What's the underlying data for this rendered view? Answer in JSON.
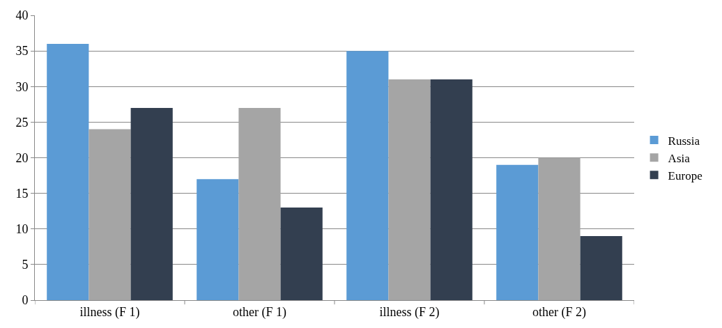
{
  "chart_data": {
    "type": "bar",
    "categories": [
      "illness (F 1)",
      "other (F 1)",
      "illness (F 2)",
      "other (F 2)"
    ],
    "series": [
      {
        "name": "Russia",
        "color": "#5b9bd5",
        "values": [
          36,
          17,
          35,
          19
        ]
      },
      {
        "name": "Asia",
        "color": "#a5a5a5",
        "values": [
          24,
          27,
          31,
          20
        ]
      },
      {
        "name": "Europe",
        "color": "#333f50",
        "values": [
          27,
          13,
          31,
          9
        ]
      }
    ],
    "ylim": [
      0,
      40
    ],
    "yticks": [
      0,
      5,
      10,
      15,
      20,
      25,
      30,
      35,
      40
    ],
    "grid": "y",
    "legend": "right"
  }
}
